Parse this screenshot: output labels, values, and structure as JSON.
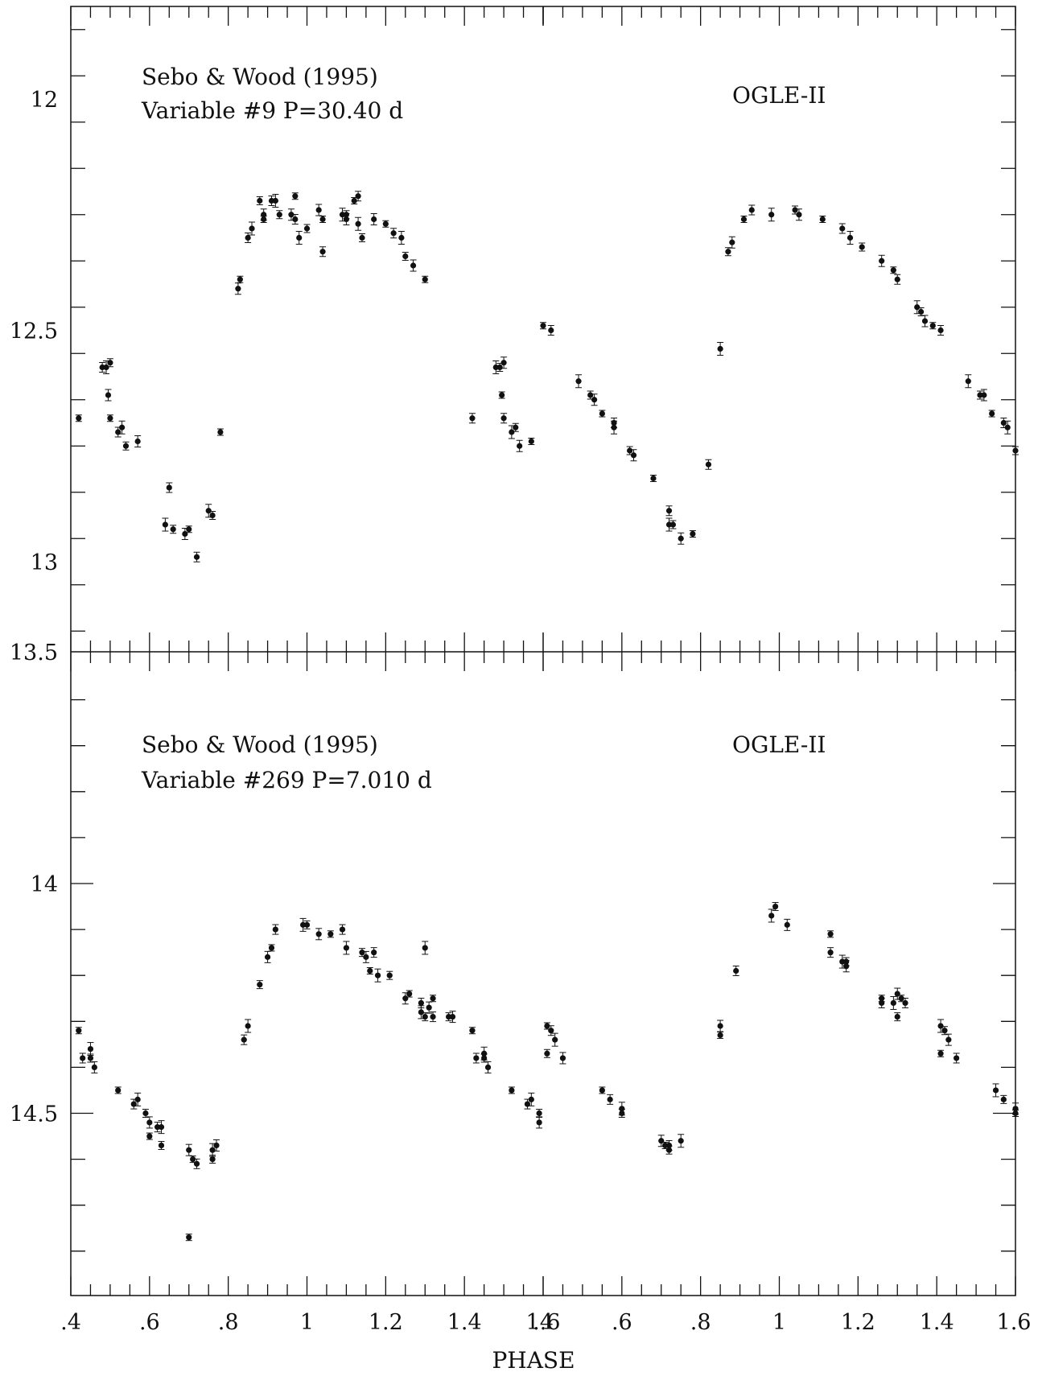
{
  "chart_data": [
    {
      "type": "scatter",
      "panel": "top",
      "annotations": [
        "Sebo & Wood (1995)",
        "Variable #9 P=30.40 d",
        "OGLE-II"
      ],
      "ylim": [
        13.25,
        11.8
      ],
      "y_ticks": [
        {
          "value": 12,
          "label": "12"
        },
        {
          "value": 12.5,
          "label": "12.5"
        },
        {
          "value": 13,
          "label": "13"
        },
        {
          "value": 13.5,
          "label": "13.5"
        }
      ],
      "series": [
        {
          "name": "Sebo & Wood (1995)",
          "points": [
            [
              0.42,
              12.69
            ],
            [
              0.48,
              12.58
            ],
            [
              0.49,
              12.58
            ],
            [
              0.5,
              12.57
            ],
            [
              0.495,
              12.64
            ],
            [
              0.5,
              12.69
            ],
            [
              0.52,
              12.72
            ],
            [
              0.53,
              12.71
            ],
            [
              0.54,
              12.75
            ],
            [
              0.57,
              12.74
            ],
            [
              0.78,
              12.72
            ],
            [
              0.65,
              12.84
            ],
            [
              0.64,
              12.92
            ],
            [
              0.66,
              12.93
            ],
            [
              0.69,
              12.94
            ],
            [
              0.7,
              12.93
            ],
            [
              0.72,
              12.99
            ],
            [
              0.75,
              12.89
            ],
            [
              0.76,
              12.9
            ],
            [
              0.825,
              12.41
            ],
            [
              0.83,
              12.39
            ],
            [
              0.85,
              12.3
            ],
            [
              0.86,
              12.28
            ],
            [
              0.88,
              12.22
            ],
            [
              0.89,
              12.25
            ],
            [
              0.89,
              12.26
            ],
            [
              0.91,
              12.22
            ],
            [
              0.92,
              12.22
            ],
            [
              0.93,
              12.25
            ],
            [
              0.96,
              12.25
            ],
            [
              0.97,
              12.21
            ],
            [
              0.97,
              12.26
            ],
            [
              0.98,
              12.3
            ],
            [
              1.0,
              12.28
            ],
            [
              1.03,
              12.24
            ],
            [
              1.04,
              12.26
            ],
            [
              1.04,
              12.33
            ],
            [
              1.09,
              12.25
            ],
            [
              1.1,
              12.25
            ],
            [
              1.1,
              12.26
            ],
            [
              1.12,
              12.22
            ],
            [
              1.13,
              12.21
            ],
            [
              1.13,
              12.27
            ],
            [
              1.14,
              12.3
            ],
            [
              1.17,
              12.26
            ],
            [
              1.2,
              12.27
            ],
            [
              1.22,
              12.29
            ],
            [
              1.24,
              12.3
            ],
            [
              1.25,
              12.34
            ],
            [
              1.27,
              12.36
            ],
            [
              1.3,
              12.39
            ],
            [
              1.42,
              12.69
            ],
            [
              1.48,
              12.58
            ],
            [
              1.49,
              12.58
            ],
            [
              1.5,
              12.57
            ],
            [
              1.495,
              12.64
            ],
            [
              1.5,
              12.69
            ],
            [
              1.52,
              12.72
            ],
            [
              1.53,
              12.71
            ],
            [
              1.54,
              12.75
            ],
            [
              1.57,
              12.74
            ]
          ]
        },
        {
          "name": "OGLE-II",
          "points": [
            [
              0.4,
              12.49
            ],
            [
              0.42,
              12.5
            ],
            [
              0.49,
              12.61
            ],
            [
              0.52,
              12.64
            ],
            [
              0.53,
              12.65
            ],
            [
              0.55,
              12.68
            ],
            [
              0.58,
              12.7
            ],
            [
              0.58,
              12.71
            ],
            [
              0.62,
              12.76
            ],
            [
              0.63,
              12.77
            ],
            [
              0.68,
              12.82
            ],
            [
              0.72,
              12.89
            ],
            [
              0.72,
              12.92
            ],
            [
              0.73,
              12.92
            ],
            [
              0.75,
              12.95
            ],
            [
              0.78,
              12.94
            ],
            [
              0.82,
              12.79
            ],
            [
              0.85,
              12.54
            ],
            [
              0.87,
              12.33
            ],
            [
              0.88,
              12.31
            ],
            [
              0.91,
              12.26
            ],
            [
              0.93,
              12.24
            ],
            [
              0.98,
              12.25
            ],
            [
              1.04,
              12.24
            ],
            [
              1.05,
              12.25
            ],
            [
              1.11,
              12.26
            ],
            [
              1.16,
              12.28
            ],
            [
              1.18,
              12.3
            ],
            [
              1.21,
              12.32
            ],
            [
              1.26,
              12.35
            ],
            [
              1.29,
              12.37
            ],
            [
              1.3,
              12.39
            ],
            [
              1.35,
              12.45
            ],
            [
              1.36,
              12.46
            ],
            [
              1.37,
              12.48
            ],
            [
              1.39,
              12.49
            ],
            [
              1.41,
              12.5
            ],
            [
              1.48,
              12.61
            ],
            [
              1.51,
              12.64
            ],
            [
              1.52,
              12.64
            ],
            [
              1.54,
              12.68
            ],
            [
              1.57,
              12.7
            ],
            [
              1.58,
              12.71
            ],
            [
              1.6,
              12.76
            ]
          ]
        }
      ]
    },
    {
      "type": "scatter",
      "panel": "bottom",
      "annotations": [
        "Sebo & Wood (1995)",
        "Variable #269 P=7.010 d",
        "OGLE-II"
      ],
      "ylim": [
        14.9,
        13.5
      ],
      "y_ticks": [
        {
          "value": 14,
          "label": "14"
        },
        {
          "value": 14.5,
          "label": "14.5"
        }
      ],
      "series": [
        {
          "name": "Sebo & Wood (1995)",
          "points": [
            [
              0.42,
              14.32
            ],
            [
              0.43,
              14.38
            ],
            [
              0.45,
              14.36
            ],
            [
              0.45,
              14.38
            ],
            [
              0.46,
              14.4
            ],
            [
              0.52,
              14.45
            ],
            [
              0.56,
              14.48
            ],
            [
              0.57,
              14.47
            ],
            [
              0.59,
              14.5
            ],
            [
              0.6,
              14.52
            ],
            [
              0.6,
              14.55
            ],
            [
              0.62,
              14.53
            ],
            [
              0.63,
              14.53
            ],
            [
              0.63,
              14.57
            ],
            [
              0.7,
              14.58
            ],
            [
              0.71,
              14.6
            ],
            [
              0.72,
              14.61
            ],
            [
              0.76,
              14.58
            ],
            [
              0.76,
              14.6
            ],
            [
              0.77,
              14.57
            ],
            [
              0.7,
              14.77
            ],
            [
              0.84,
              14.34
            ],
            [
              0.85,
              14.31
            ],
            [
              0.88,
              14.22
            ],
            [
              0.9,
              14.16
            ],
            [
              0.91,
              14.14
            ],
            [
              0.92,
              14.1
            ],
            [
              0.99,
              14.09
            ],
            [
              1.0,
              14.09
            ],
            [
              1.03,
              14.11
            ],
            [
              1.06,
              14.11
            ],
            [
              1.09,
              14.1
            ],
            [
              1.1,
              14.14
            ],
            [
              1.14,
              14.15
            ],
            [
              1.15,
              14.16
            ],
            [
              1.16,
              14.19
            ],
            [
              1.17,
              14.15
            ],
            [
              1.18,
              14.2
            ],
            [
              1.21,
              14.2
            ],
            [
              1.25,
              14.25
            ],
            [
              1.26,
              14.24
            ],
            [
              1.29,
              14.26
            ],
            [
              1.29,
              14.28
            ],
            [
              1.3,
              14.29
            ],
            [
              1.31,
              14.27
            ],
            [
              1.32,
              14.25
            ],
            [
              1.32,
              14.29
            ],
            [
              1.3,
              14.14
            ],
            [
              1.36,
              14.29
            ],
            [
              1.37,
              14.29
            ],
            [
              1.42,
              14.32
            ],
            [
              1.43,
              14.38
            ],
            [
              1.45,
              14.37
            ],
            [
              1.45,
              14.38
            ],
            [
              1.46,
              14.4
            ],
            [
              1.52,
              14.45
            ],
            [
              1.56,
              14.48
            ],
            [
              1.57,
              14.47
            ],
            [
              1.59,
              14.5
            ],
            [
              1.59,
              14.52
            ]
          ]
        },
        {
          "name": "OGLE-II",
          "points": [
            [
              0.41,
              14.31
            ],
            [
              0.42,
              14.32
            ],
            [
              0.43,
              14.34
            ],
            [
              0.41,
              14.37
            ],
            [
              0.45,
              14.38
            ],
            [
              0.55,
              14.45
            ],
            [
              0.57,
              14.47
            ],
            [
              0.6,
              14.49
            ],
            [
              0.6,
              14.5
            ],
            [
              0.7,
              14.56
            ],
            [
              0.71,
              14.57
            ],
            [
              0.72,
              14.57
            ],
            [
              0.75,
              14.56
            ],
            [
              0.72,
              14.58
            ],
            [
              0.85,
              14.31
            ],
            [
              0.85,
              14.33
            ],
            [
              0.89,
              14.19
            ],
            [
              0.98,
              14.07
            ],
            [
              0.99,
              14.05
            ],
            [
              1.02,
              14.09
            ],
            [
              1.13,
              14.11
            ],
            [
              1.13,
              14.15
            ],
            [
              1.16,
              14.17
            ],
            [
              1.17,
              14.17
            ],
            [
              1.17,
              14.18
            ],
            [
              1.26,
              14.25
            ],
            [
              1.26,
              14.26
            ],
            [
              1.29,
              14.26
            ],
            [
              1.3,
              14.29
            ],
            [
              1.3,
              14.24
            ],
            [
              1.31,
              14.25
            ],
            [
              1.32,
              14.26
            ],
            [
              1.41,
              14.31
            ],
            [
              1.42,
              14.32
            ],
            [
              1.43,
              14.34
            ],
            [
              1.41,
              14.37
            ],
            [
              1.45,
              14.38
            ],
            [
              1.55,
              14.45
            ],
            [
              1.57,
              14.47
            ],
            [
              1.6,
              14.49
            ],
            [
              1.6,
              14.5
            ]
          ]
        }
      ]
    }
  ],
  "x_axis": {
    "title": "PHASE",
    "xlim": [
      0.4,
      1.6
    ],
    "tick_labels": [
      ".4",
      ".6",
      ".8",
      "1",
      "1.2",
      "1.4",
      "1.6"
    ]
  }
}
